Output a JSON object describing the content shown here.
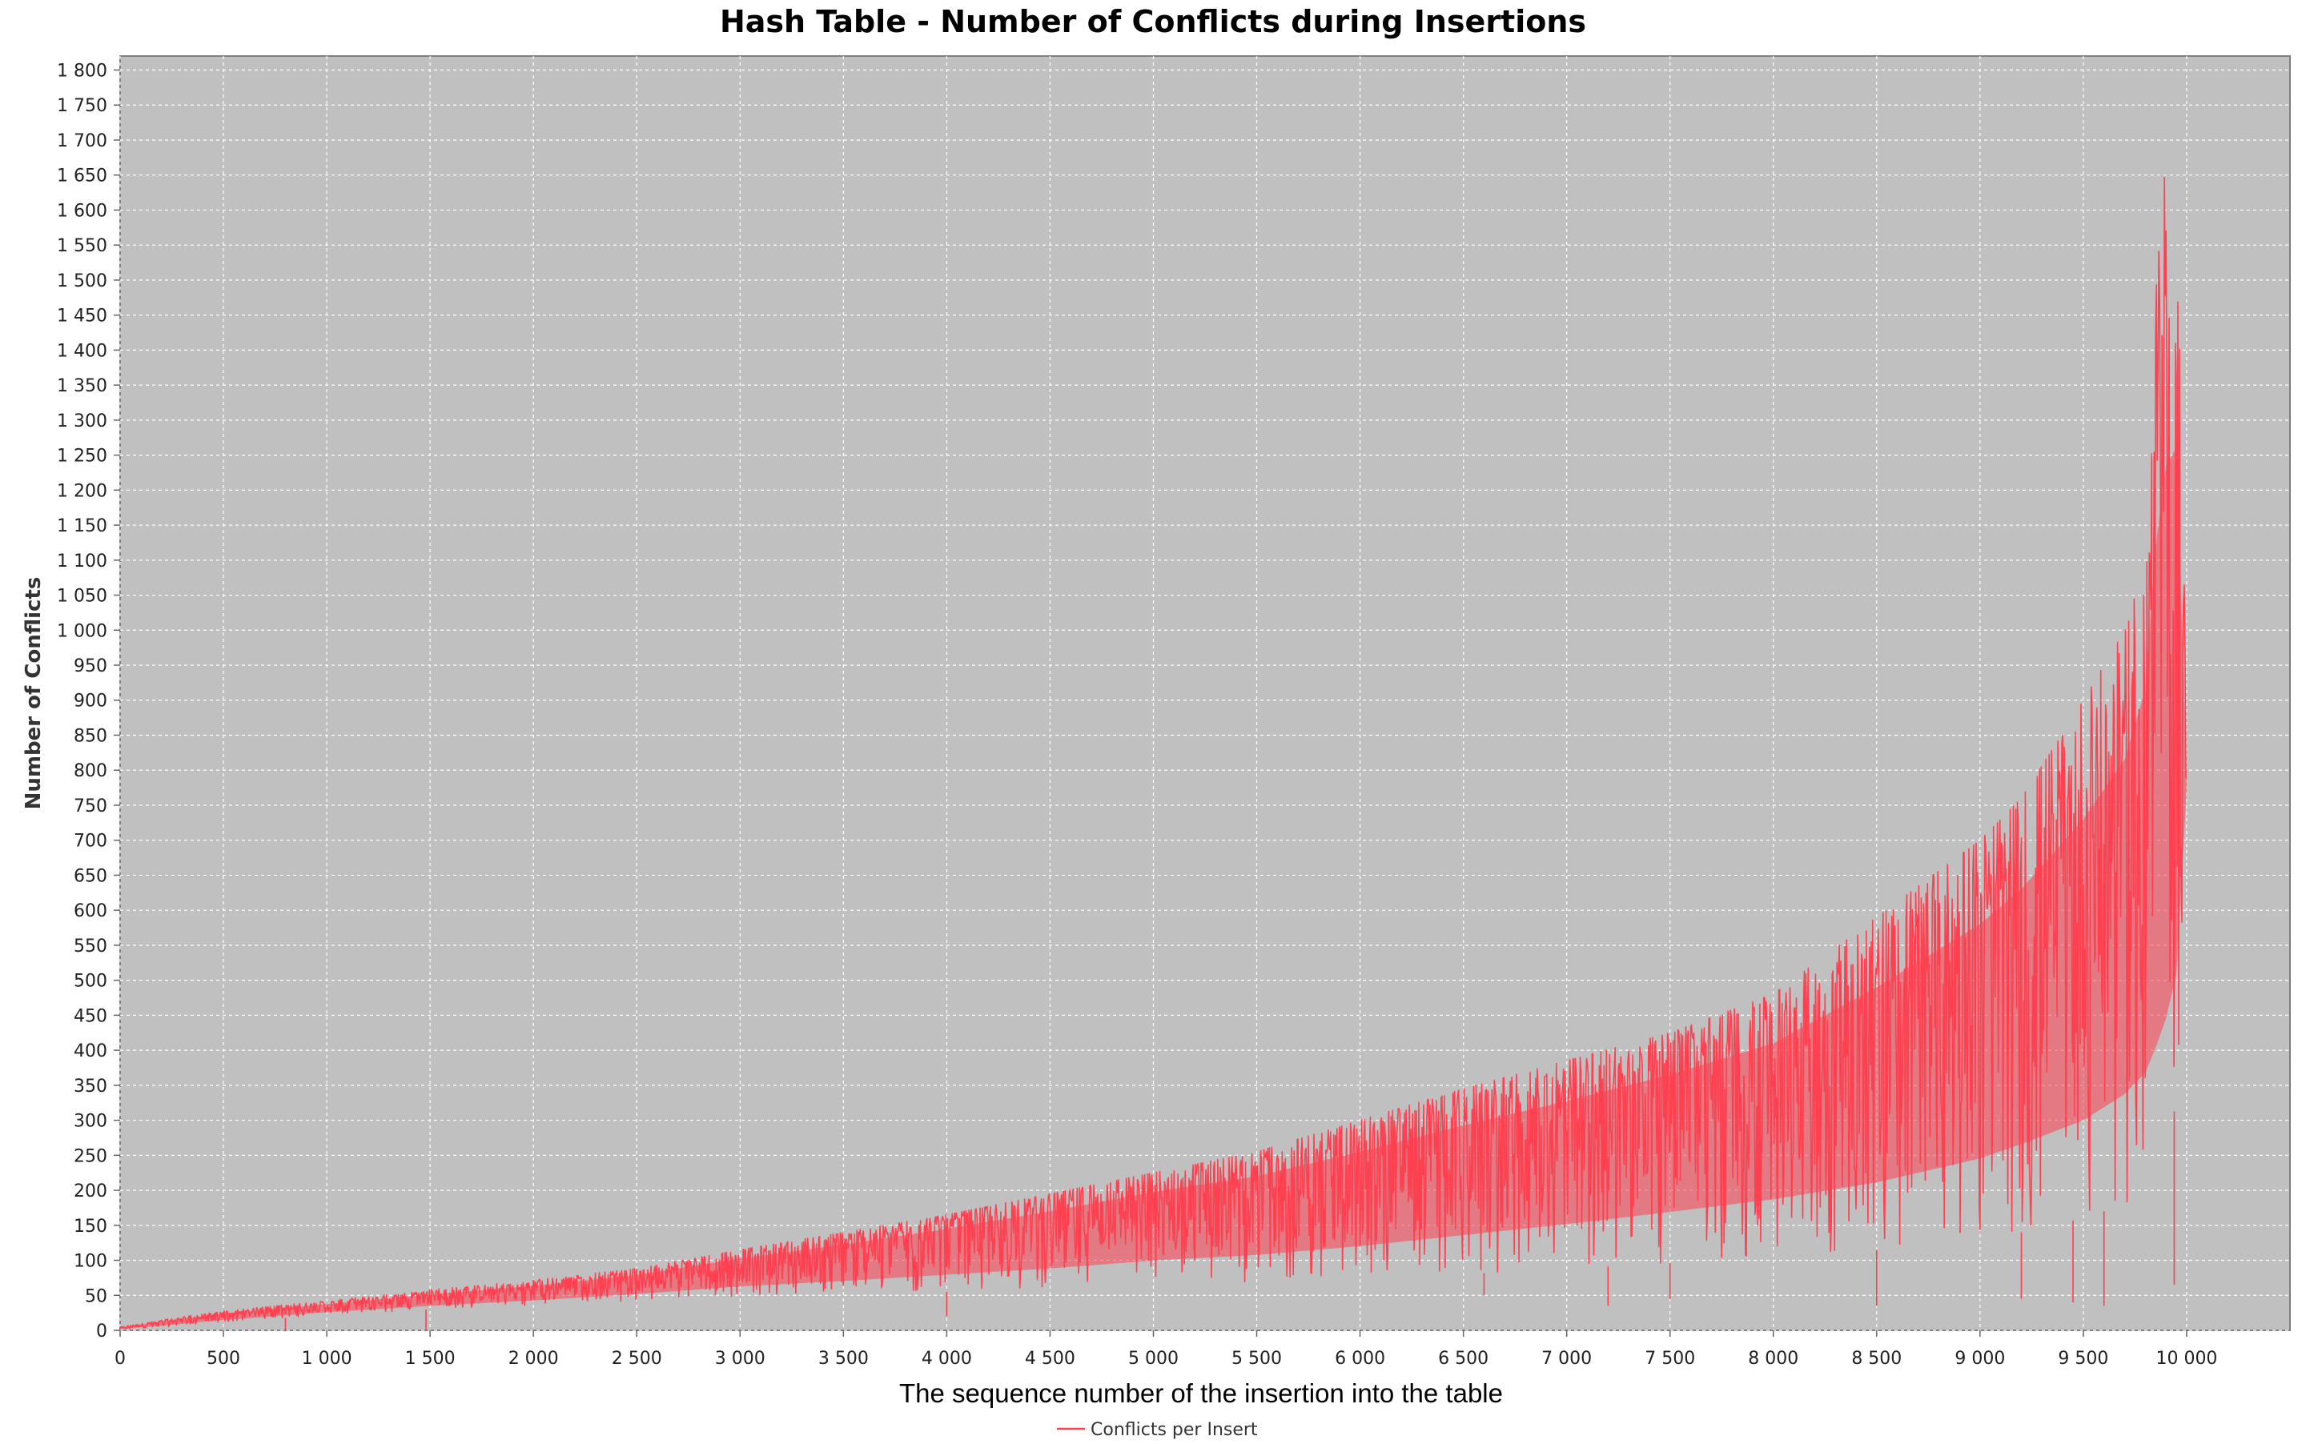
{
  "chart_data": {
    "type": "line",
    "title": "Hash Table - Number of Conflicts during Insertions",
    "xlabel": "The sequence number of the insertion into the table",
    "ylabel": "Number of Conflicts",
    "xlim": [
      0,
      10500
    ],
    "ylim": [
      0,
      1820
    ],
    "x_ticks": [
      0,
      500,
      1000,
      1500,
      2000,
      2500,
      3000,
      3500,
      4000,
      4500,
      5000,
      5500,
      6000,
      6500,
      7000,
      7500,
      8000,
      8500,
      9000,
      9500,
      10000
    ],
    "x_tick_labels": [
      "0",
      "500",
      "1 000",
      "1 500",
      "2 000",
      "2 500",
      "3 000",
      "3 500",
      "4 000",
      "4 500",
      "5 000",
      "5 500",
      "6 000",
      "6 500",
      "7 000",
      "7 500",
      "8 000",
      "8 500",
      "9 000",
      "9 500",
      "10 000"
    ],
    "y_ticks": [
      0,
      50,
      100,
      150,
      200,
      250,
      300,
      350,
      400,
      450,
      500,
      550,
      600,
      650,
      700,
      750,
      800,
      850,
      900,
      950,
      1000,
      1050,
      1100,
      1150,
      1200,
      1250,
      1300,
      1350,
      1400,
      1450,
      1500,
      1550,
      1600,
      1650,
      1700,
      1750,
      1800
    ],
    "y_tick_labels": [
      "0",
      "50",
      "100",
      "150",
      "200",
      "250",
      "300",
      "350",
      "400",
      "450",
      "500",
      "550",
      "600",
      "650",
      "700",
      "750",
      "800",
      "850",
      "900",
      "950",
      "1 000",
      "1 050",
      "1 100",
      "1 150",
      "1 200",
      "1 250",
      "1 300",
      "1 350",
      "1 400",
      "1 450",
      "1 500",
      "1 550",
      "1 600",
      "1 650",
      "1 700",
      "1 750",
      "1 800"
    ],
    "grid": true,
    "legend_position": "bottom-center",
    "colors": {
      "background": "#ffffff",
      "plot_background": "#c0c0c0",
      "grid": "#ffffff",
      "series": "#ff4050"
    },
    "series": [
      {
        "name": "Conflicts per Insert",
        "x": [
          0,
          200,
          500,
          1000,
          1500,
          2000,
          2500,
          3000,
          3500,
          4000,
          4500,
          5000,
          5500,
          6000,
          6500,
          7000,
          7500,
          8000,
          8500,
          9000,
          9200,
          9500,
          9700,
          9800,
          9880,
          9930,
          9970,
          10000
        ],
        "upper": [
          5,
          15,
          28,
          42,
          58,
          72,
          88,
          115,
          140,
          165,
          195,
          225,
          255,
          300,
          345,
          385,
          425,
          480,
          590,
          700,
          760,
          900,
          1000,
          1150,
          1730,
          1650,
          1690,
          800
        ],
        "mid": [
          3,
          10,
          20,
          33,
          44,
          55,
          70,
          90,
          105,
          125,
          145,
          170,
          185,
          210,
          240,
          270,
          305,
          340,
          390,
          460,
          500,
          560,
          630,
          680,
          750,
          800,
          900,
          780
        ],
        "lower": [
          1,
          5,
          12,
          22,
          30,
          36,
          42,
          48,
          52,
          55,
          58,
          62,
          66,
          72,
          80,
          88,
          96,
          105,
          115,
          130,
          140,
          160,
          180,
          200,
          250,
          300,
          350,
          770
        ],
        "outliers": [
          [
            1480,
            0
          ],
          [
            800,
            0
          ],
          [
            4000,
            20
          ],
          [
            6600,
            50
          ],
          [
            7200,
            35
          ],
          [
            7500,
            45
          ],
          [
            8500,
            35
          ],
          [
            9200,
            45
          ],
          [
            9450,
            40
          ],
          [
            9600,
            35
          ],
          [
            9940,
            65
          ]
        ]
      }
    ]
  }
}
